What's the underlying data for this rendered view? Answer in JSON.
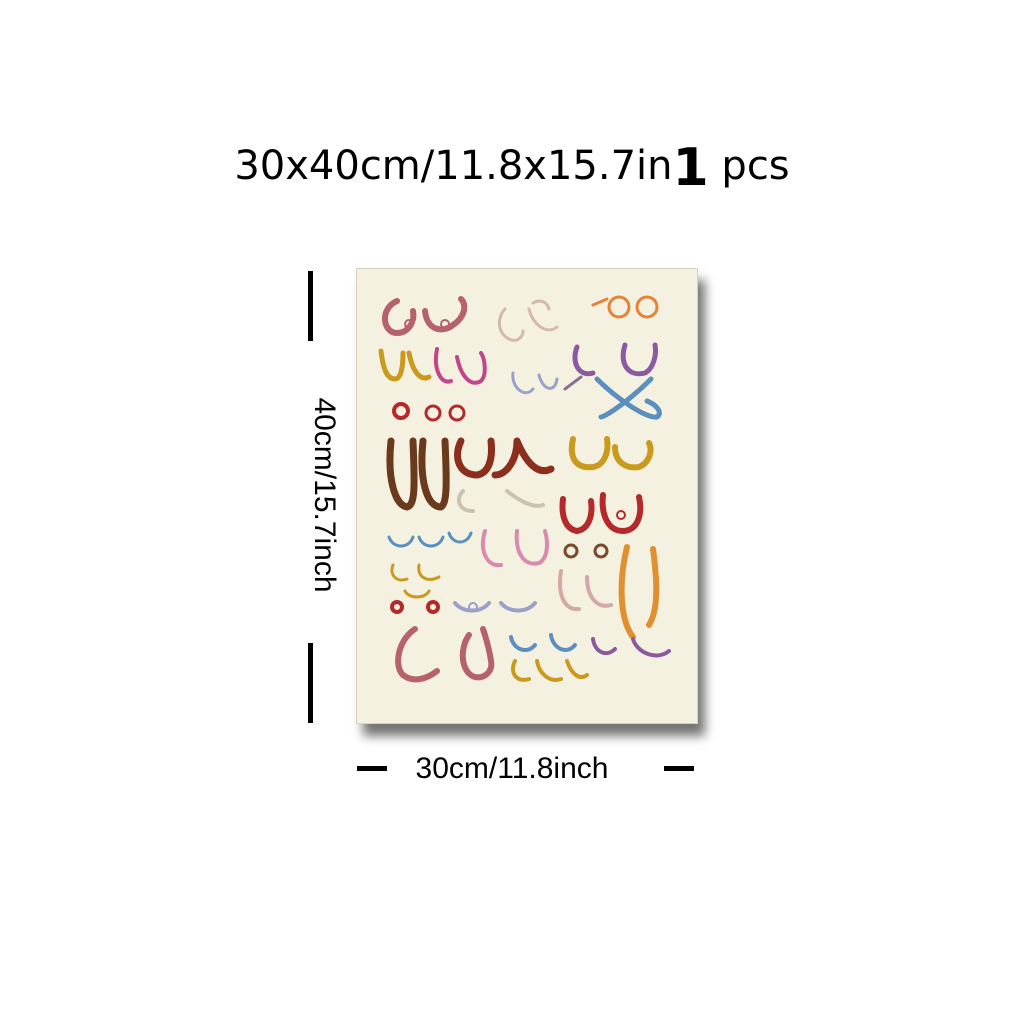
{
  "header": {
    "size_text": "30x40cm/11.8x15.7in",
    "quantity": "1",
    "unit": "pcs"
  },
  "dimensions": {
    "height_label": "40cm/15.7inch",
    "width_label": "30cm/11.8inch"
  },
  "poster": {
    "background_color": "#f5f1e1",
    "line_palette": [
      "#b5626e",
      "#d4a8a8",
      "#e8823a",
      "#8a5aa0",
      "#c99a1e",
      "#c2468a",
      "#9aa0c8",
      "#5a8fc0",
      "#b42a2a",
      "#6b3a1c",
      "#8b2e1e",
      "#c9c2b0",
      "#e09030",
      "#d98ab0",
      "#7a4a2a"
    ]
  }
}
